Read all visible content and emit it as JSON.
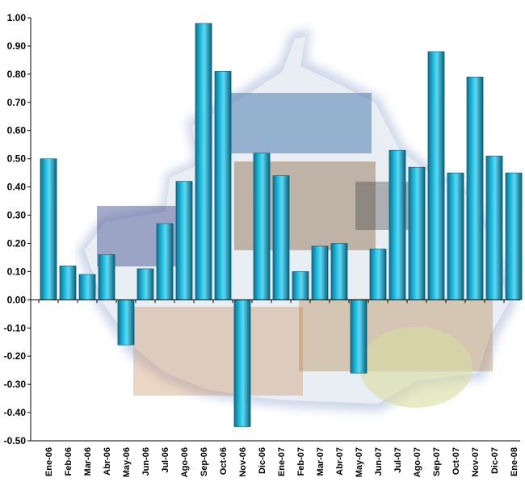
{
  "chart_data": {
    "type": "bar",
    "categories": [
      "Ene-06",
      "Feb-06",
      "Mar-06",
      "Abr-06",
      "May-06",
      "Jun-06",
      "Jul-06",
      "Ago-06",
      "Sep-06",
      "Oct-06",
      "Nov-06",
      "Dic-06",
      "Ene-07",
      "Feb-07",
      "Mar-07",
      "Abr-07",
      "May-07",
      "Jun-07",
      "Jul-07",
      "Ago-07",
      "Sep-07",
      "Oct-07",
      "Nov-07",
      "Dic-07",
      "Ene-08"
    ],
    "values": [
      0.5,
      0.12,
      0.09,
      0.16,
      -0.16,
      0.11,
      0.27,
      0.42,
      0.98,
      0.81,
      -0.45,
      0.52,
      0.44,
      0.1,
      0.19,
      0.2,
      -0.26,
      0.18,
      0.53,
      0.47,
      0.88,
      0.45,
      0.79,
      0.51,
      0.45
    ],
    "y_ticks": [
      "1.00",
      "0.90",
      "0.80",
      "0.70",
      "0.60",
      "0.50",
      "0.40",
      "0.30",
      "0.20",
      "0.10",
      "0.00",
      "-0.10",
      "-0.20",
      "-0.30",
      "-0.40",
      "-0.50"
    ],
    "ylim": [
      -0.5,
      1.0
    ],
    "grid": false,
    "legend": "none",
    "bar_color": "#1aa6c9",
    "background": "photo-collage-map-silhouette"
  }
}
